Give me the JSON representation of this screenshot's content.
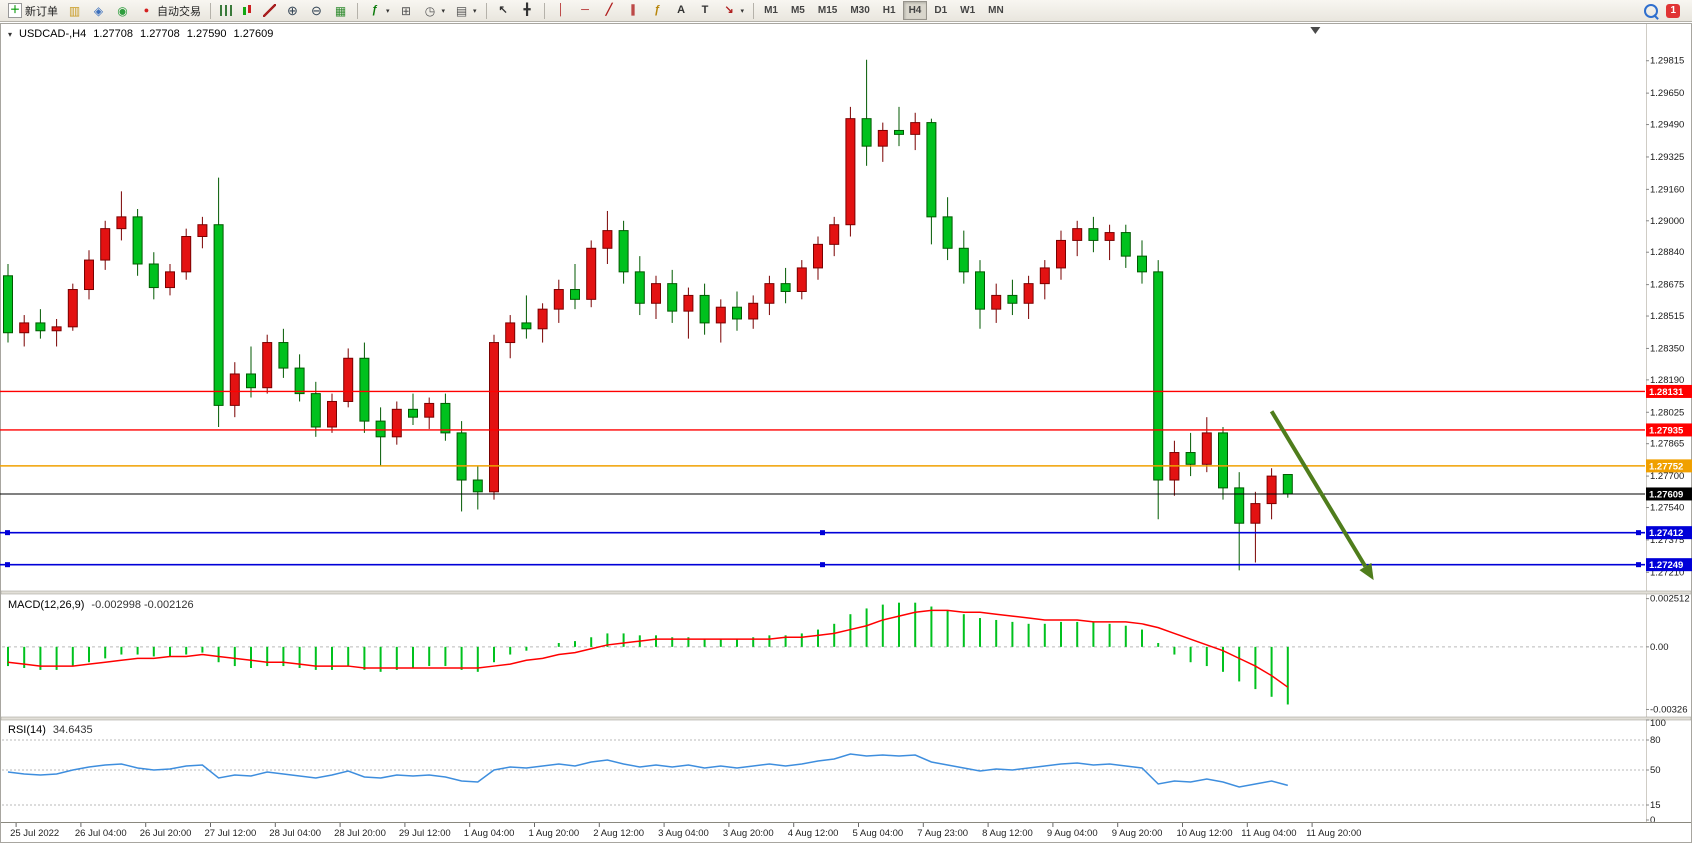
{
  "toolbar": {
    "items": [
      {
        "name": "new-order-button",
        "icon": "new-order-icon",
        "label": "新订单"
      },
      {
        "name": "market-watch-button",
        "icon": "market-watch-icon"
      },
      {
        "name": "navigator-button",
        "icon": "navigator-icon"
      },
      {
        "name": "terminal-button",
        "icon": "terminal-icon"
      },
      {
        "name": "autotrading-button",
        "icon": "autotrading-icon",
        "label": "自动交易"
      },
      {
        "sep": true
      },
      {
        "name": "bar-chart-button",
        "icon": "bar-chart-icon"
      },
      {
        "name": "candlestick-button",
        "icon": "candlestick-icon"
      },
      {
        "name": "line-chart-button",
        "icon": "line-chart-icon"
      },
      {
        "name": "zoom-in-button",
        "icon": "zoom-in-icon"
      },
      {
        "name": "zoom-out-button",
        "icon": "zoom-out-icon"
      },
      {
        "name": "tile-windows-button",
        "icon": "tile-windows-icon"
      },
      {
        "sep": true
      },
      {
        "name": "indicators-button",
        "icon": "indicators-icon",
        "dropdown": true
      },
      {
        "name": "indicator-windows-button",
        "icon": "indicator-windows-icon"
      },
      {
        "name": "periods-button",
        "icon": "periods-icon",
        "dropdown": true
      },
      {
        "name": "templates-button",
        "icon": "templates-icon",
        "dropdown": true
      },
      {
        "sep": true
      },
      {
        "name": "cursor-button",
        "icon": "cursor-icon"
      },
      {
        "name": "crosshair-button",
        "icon": "crosshair-icon"
      },
      {
        "sep": true
      },
      {
        "name": "vertical-line-button",
        "icon": "vertical-line-icon"
      },
      {
        "name": "horizontal-line-button",
        "icon": "horizontal-line-icon"
      },
      {
        "name": "trendline-button",
        "icon": "trendline-icon"
      },
      {
        "name": "channel-button",
        "icon": "channel-icon"
      },
      {
        "name": "fibonacci-button",
        "icon": "fibonacci-icon"
      },
      {
        "name": "text-button",
        "icon": "text-icon"
      },
      {
        "name": "text-label-button",
        "icon": "text-label-icon"
      },
      {
        "name": "arrows-button",
        "icon": "arrows-icon",
        "dropdown": true
      },
      {
        "sep": true
      }
    ],
    "timeframes": [
      "M1",
      "M5",
      "M15",
      "M30",
      "H1",
      "H4",
      "D1",
      "W1",
      "MN"
    ],
    "active_timeframe": "H4",
    "right": {
      "badge_count": "1"
    }
  },
  "chart_data": [
    {
      "type": "candlestick",
      "title": "USDCAD-,H4",
      "ohlc": [
        "1.27708",
        "1.27708",
        "1.27590",
        "1.27609"
      ],
      "ylim": [
        1.2712,
        1.2989
      ],
      "colors": {
        "up": "#e31212",
        "up_border": "#7a0000",
        "down": "#00c11e",
        "down_border": "#005a00"
      },
      "y_ticks": [
        "1.29815",
        "1.29650",
        "1.29490",
        "1.29325",
        "1.29160",
        "1.29000",
        "1.28840",
        "1.28675",
        "1.28515",
        "1.28350",
        "1.28190",
        "1.28025",
        "1.27865",
        "1.27700",
        "1.27540",
        "1.27375",
        "1.27210"
      ],
      "x_labels": [
        "25 Jul 2022",
        "26 Jul 04:00",
        "26 Jul 20:00",
        "27 Jul 12:00",
        "28 Jul 04:00",
        "28 Jul 20:00",
        "29 Jul 12:00",
        "1 Aug 04:00",
        "1 Aug 20:00",
        "2 Aug 12:00",
        "3 Aug 04:00",
        "3 Aug 20:00",
        "4 Aug 12:00",
        "5 Aug 04:00",
        "7 Aug 23:00",
        "8 Aug 12:00",
        "9 Aug 04:00",
        "9 Aug 20:00",
        "10 Aug 12:00",
        "11 Aug 04:00",
        "11 Aug 20:00"
      ],
      "h_lines": [
        {
          "name": "resistance-line-upper",
          "price": 1.28131,
          "color": "#ff0000",
          "tag": "1.28131",
          "width": 1.4
        },
        {
          "name": "resistance-line-lower",
          "price": 1.27935,
          "color": "#ff0000",
          "tag": "1.27935",
          "width": 1.4
        },
        {
          "name": "orange-level-line",
          "price": 1.27752,
          "color": "#f0a000",
          "tag": "1.27752",
          "width": 1.6
        },
        {
          "name": "current-price-line",
          "price": 1.27609,
          "color": "#000000",
          "tag": "1.27609",
          "width": 1
        },
        {
          "name": "support-line-upper",
          "price": 1.27412,
          "color": "#0000d8",
          "tag": "1.27412",
          "width": 1.6,
          "handles": true
        },
        {
          "name": "support-line-lower",
          "price": 1.27249,
          "color": "#0000d8",
          "tag": "1.27249",
          "width": 1.6,
          "handles": true
        }
      ],
      "arrow": {
        "from": {
          "bar": 78,
          "price": 1.2803
        },
        "to": {
          "bar": 84.3,
          "price": 1.2717
        },
        "color": "#4f7d1c"
      },
      "shift_marker_bar": 80.7,
      "candles": [
        [
          1.2872,
          1.2878,
          1.2838,
          1.2843
        ],
        [
          1.2843,
          1.2852,
          1.2836,
          1.2848
        ],
        [
          1.2848,
          1.2855,
          1.284,
          1.2844
        ],
        [
          1.2844,
          1.285,
          1.2836,
          1.2846
        ],
        [
          1.2846,
          1.2868,
          1.2844,
          1.2865
        ],
        [
          1.2865,
          1.2885,
          1.286,
          1.288
        ],
        [
          1.288,
          1.29,
          1.2875,
          1.2896
        ],
        [
          1.2896,
          1.2915,
          1.289,
          1.2902
        ],
        [
          1.2902,
          1.2906,
          1.2872,
          1.2878
        ],
        [
          1.2878,
          1.2884,
          1.286,
          1.2866
        ],
        [
          1.2866,
          1.2878,
          1.2862,
          1.2874
        ],
        [
          1.2874,
          1.2896,
          1.287,
          1.2892
        ],
        [
          1.2892,
          1.2902,
          1.2886,
          1.2898
        ],
        [
          1.2898,
          1.2922,
          1.2795,
          1.2806
        ],
        [
          1.2806,
          1.2828,
          1.28,
          1.2822
        ],
        [
          1.2822,
          1.2836,
          1.281,
          1.2815
        ],
        [
          1.2815,
          1.2842,
          1.2812,
          1.2838
        ],
        [
          1.2838,
          1.2845,
          1.282,
          1.2825
        ],
        [
          1.2825,
          1.2832,
          1.2808,
          1.2812
        ],
        [
          1.2812,
          1.2818,
          1.279,
          1.2795
        ],
        [
          1.2795,
          1.2812,
          1.2792,
          1.2808
        ],
        [
          1.2808,
          1.2835,
          1.2805,
          1.283
        ],
        [
          1.283,
          1.2838,
          1.2792,
          1.2798
        ],
        [
          1.2798,
          1.2805,
          1.2775,
          1.279
        ],
        [
          1.279,
          1.2808,
          1.2786,
          1.2804
        ],
        [
          1.2804,
          1.2812,
          1.2796,
          1.28
        ],
        [
          1.28,
          1.281,
          1.2794,
          1.2807
        ],
        [
          1.2807,
          1.2812,
          1.2788,
          1.2792
        ],
        [
          1.2792,
          1.2798,
          1.2752,
          1.2768
        ],
        [
          1.2768,
          1.2775,
          1.2753,
          1.2762
        ],
        [
          1.2762,
          1.2842,
          1.2758,
          1.2838
        ],
        [
          1.2838,
          1.2852,
          1.283,
          1.2848
        ],
        [
          1.2848,
          1.2862,
          1.284,
          1.2845
        ],
        [
          1.2845,
          1.2858,
          1.2838,
          1.2855
        ],
        [
          1.2855,
          1.287,
          1.2848,
          1.2865
        ],
        [
          1.2865,
          1.2878,
          1.2855,
          1.286
        ],
        [
          1.286,
          1.289,
          1.2856,
          1.2886
        ],
        [
          1.2886,
          1.2905,
          1.2878,
          1.2895
        ],
        [
          1.2895,
          1.29,
          1.2868,
          1.2874
        ],
        [
          1.2874,
          1.2882,
          1.2852,
          1.2858
        ],
        [
          1.2858,
          1.2872,
          1.285,
          1.2868
        ],
        [
          1.2868,
          1.2875,
          1.2848,
          1.2854
        ],
        [
          1.2854,
          1.2866,
          1.284,
          1.2862
        ],
        [
          1.2862,
          1.2868,
          1.2842,
          1.2848
        ],
        [
          1.2848,
          1.286,
          1.2838,
          1.2856
        ],
        [
          1.2856,
          1.2864,
          1.2844,
          1.285
        ],
        [
          1.285,
          1.2862,
          1.2845,
          1.2858
        ],
        [
          1.2858,
          1.2872,
          1.2852,
          1.2868
        ],
        [
          1.2868,
          1.2876,
          1.2858,
          1.2864
        ],
        [
          1.2864,
          1.288,
          1.286,
          1.2876
        ],
        [
          1.2876,
          1.2892,
          1.287,
          1.2888
        ],
        [
          1.2888,
          1.2902,
          1.2882,
          1.2898
        ],
        [
          1.2898,
          1.2958,
          1.2892,
          1.2952
        ],
        [
          1.2952,
          1.2982,
          1.2928,
          1.2938
        ],
        [
          1.2938,
          1.295,
          1.293,
          1.2946
        ],
        [
          1.2946,
          1.2958,
          1.2938,
          1.2944
        ],
        [
          1.2944,
          1.2955,
          1.2936,
          1.295
        ],
        [
          1.295,
          1.2952,
          1.2888,
          1.2902
        ],
        [
          1.2902,
          1.2912,
          1.288,
          1.2886
        ],
        [
          1.2886,
          1.2895,
          1.2868,
          1.2874
        ],
        [
          1.2874,
          1.288,
          1.2845,
          1.2855
        ],
        [
          1.2855,
          1.2868,
          1.2848,
          1.2862
        ],
        [
          1.2862,
          1.287,
          1.2852,
          1.2858
        ],
        [
          1.2858,
          1.2872,
          1.285,
          1.2868
        ],
        [
          1.2868,
          1.288,
          1.286,
          1.2876
        ],
        [
          1.2876,
          1.2895,
          1.287,
          1.289
        ],
        [
          1.289,
          1.29,
          1.2882,
          1.2896
        ],
        [
          1.2896,
          1.2902,
          1.2884,
          1.289
        ],
        [
          1.289,
          1.2898,
          1.288,
          1.2894
        ],
        [
          1.2894,
          1.2898,
          1.2876,
          1.2882
        ],
        [
          1.2882,
          1.289,
          1.2868,
          1.2874
        ],
        [
          1.2874,
          1.288,
          1.2748,
          1.2768
        ],
        [
          1.2768,
          1.2788,
          1.276,
          1.2782
        ],
        [
          1.2782,
          1.2792,
          1.277,
          1.2776
        ],
        [
          1.2776,
          1.28,
          1.2772,
          1.2792
        ],
        [
          1.2792,
          1.2795,
          1.2758,
          1.2764
        ],
        [
          1.2764,
          1.2772,
          1.2722,
          1.2746
        ],
        [
          1.2746,
          1.2762,
          1.2726,
          1.2756
        ],
        [
          1.2756,
          1.2774,
          1.2748,
          1.277
        ],
        [
          1.27708,
          1.27708,
          1.2759,
          1.27609
        ]
      ]
    },
    {
      "type": "macd",
      "label": "MACD(12,26,9)",
      "values_text": "-0.002998 -0.002126",
      "ylim": [
        -0.0036,
        0.0027
      ],
      "hist_color": "#00c11e",
      "signal_color": "#ff0000",
      "y_ticks": [
        "0.002512",
        "0.00",
        "-0.00326"
      ],
      "histogram": [
        -0.001,
        -0.0011,
        -0.0012,
        -0.0012,
        -0.001,
        -0.0008,
        -0.0006,
        -0.0004,
        -0.0004,
        -0.0005,
        -0.0005,
        -0.0004,
        -0.0003,
        -0.0008,
        -0.001,
        -0.0011,
        -0.001,
        -0.001,
        -0.0011,
        -0.0012,
        -0.0012,
        -0.001,
        -0.0012,
        -0.0013,
        -0.0012,
        -0.0011,
        -0.001,
        -0.001,
        -0.0012,
        -0.0013,
        -0.0008,
        -0.0004,
        -0.0002,
        0.0,
        0.0002,
        0.0003,
        0.0005,
        0.0007,
        0.0007,
        0.0006,
        0.0006,
        0.0005,
        0.0005,
        0.0004,
        0.0004,
        0.0004,
        0.0005,
        0.0006,
        0.0006,
        0.0007,
        0.0009,
        0.0012,
        0.0017,
        0.002,
        0.0022,
        0.0023,
        0.0023,
        0.0021,
        0.0019,
        0.0017,
        0.0015,
        0.0014,
        0.0013,
        0.0012,
        0.0012,
        0.0013,
        0.0013,
        0.0013,
        0.0012,
        0.0011,
        0.0009,
        0.0002,
        -0.0004,
        -0.0008,
        -0.001,
        -0.0013,
        -0.0018,
        -0.0022,
        -0.0026,
        -0.003
      ],
      "signal": [
        -0.0008,
        -0.0009,
        -0.001,
        -0.001,
        -0.001,
        -0.0009,
        -0.0008,
        -0.0007,
        -0.0006,
        -0.0006,
        -0.0005,
        -0.0005,
        -0.0004,
        -0.0005,
        -0.0006,
        -0.0007,
        -0.0008,
        -0.0008,
        -0.0009,
        -0.001,
        -0.001,
        -0.001,
        -0.0011,
        -0.0011,
        -0.0011,
        -0.0011,
        -0.0011,
        -0.0011,
        -0.0011,
        -0.0011,
        -0.001,
        -0.0009,
        -0.0007,
        -0.0006,
        -0.0004,
        -0.0003,
        -0.0001,
        0.0001,
        0.0002,
        0.0003,
        0.0004,
        0.0004,
        0.0004,
        0.0004,
        0.0004,
        0.0004,
        0.0004,
        0.0004,
        0.0005,
        0.0005,
        0.0006,
        0.0007,
        0.0009,
        0.0011,
        0.0014,
        0.0016,
        0.0018,
        0.0019,
        0.0019,
        0.0018,
        0.0018,
        0.0017,
        0.0016,
        0.0015,
        0.0014,
        0.0014,
        0.0014,
        0.0013,
        0.0013,
        0.0013,
        0.0012,
        0.001,
        0.0007,
        0.0004,
        0.0001,
        -0.0002,
        -0.0006,
        -0.001,
        -0.0015,
        -0.0021
      ]
    },
    {
      "type": "rsi",
      "label": "RSI(14)",
      "value_text": "34.6435",
      "ylim": [
        0,
        100
      ],
      "levels": [
        80,
        50,
        15
      ],
      "line_color": "#3e8ede",
      "y_ticks": [
        "100",
        "80",
        "50",
        "15",
        "0"
      ],
      "values": [
        48,
        46,
        45,
        46,
        50,
        53,
        55,
        56,
        52,
        50,
        51,
        54,
        55,
        42,
        45,
        44,
        48,
        46,
        44,
        42,
        45,
        49,
        43,
        42,
        45,
        44,
        45,
        43,
        39,
        38,
        50,
        53,
        52,
        54,
        56,
        54,
        58,
        60,
        56,
        53,
        55,
        53,
        55,
        52,
        54,
        52,
        54,
        56,
        54,
        56,
        59,
        61,
        66,
        64,
        65,
        64,
        65,
        58,
        55,
        52,
        49,
        51,
        50,
        52,
        54,
        56,
        57,
        55,
        56,
        54,
        52,
        36,
        39,
        38,
        41,
        38,
        33,
        36,
        39,
        34.6
      ]
    }
  ]
}
